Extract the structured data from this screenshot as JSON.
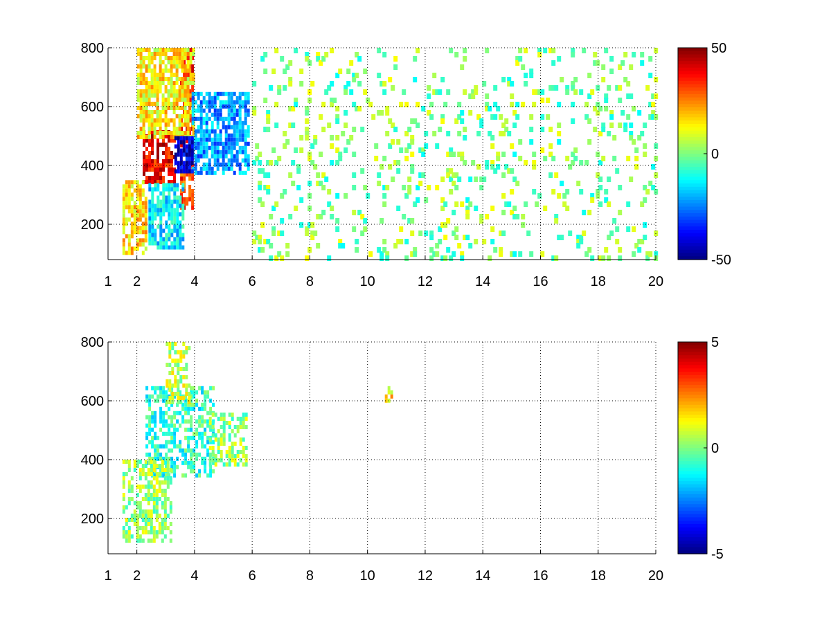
{
  "chart_data": [
    {
      "type": "heatmap",
      "title": "",
      "xlabel": "",
      "ylabel": "",
      "xlim": [
        1,
        20
      ],
      "ylim": [
        80,
        800
      ],
      "x_ticks": [
        1,
        2,
        4,
        6,
        8,
        10,
        12,
        14,
        16,
        18,
        20
      ],
      "x_tick_labels": [
        "1",
        "2",
        "4",
        "6",
        "8",
        "10",
        "12",
        "14",
        "16",
        "18",
        "20"
      ],
      "y_ticks": [
        200,
        400,
        600,
        800
      ],
      "y_tick_labels": [
        "200",
        "400",
        "600",
        "800"
      ],
      "grid": true,
      "grid_style": "dotted",
      "colormap": "jet",
      "clim": [
        -50,
        50
      ],
      "colorbar": {
        "ticks": [
          50,
          0,
          -50
        ],
        "tick_labels": [
          "50",
          "0",
          "-50"
        ]
      },
      "regions": [
        {
          "x": [
            2.2,
            3.3
          ],
          "y": [
            350,
            520
          ],
          "level": 38
        },
        {
          "x": [
            3.5,
            3.9
          ],
          "y": [
            250,
            800
          ],
          "level": 32
        },
        {
          "x": [
            2.0,
            4.0
          ],
          "y": [
            500,
            800
          ],
          "level": 14
        },
        {
          "x": [
            1.5,
            2.3
          ],
          "y": [
            100,
            350
          ],
          "level": 16
        },
        {
          "x": [
            3.9,
            5.9
          ],
          "y": [
            380,
            650
          ],
          "level": -22
        },
        {
          "x": [
            3.3,
            3.9
          ],
          "y": [
            380,
            500
          ],
          "level": -42
        },
        {
          "x": [
            2.4,
            3.6
          ],
          "y": [
            120,
            340
          ],
          "level": -14
        },
        {
          "x": [
            6,
            20
          ],
          "y": [
            80,
            800
          ],
          "level": 0,
          "sparse": true
        }
      ]
    },
    {
      "type": "heatmap",
      "title": "",
      "xlabel": "",
      "ylabel": "",
      "xlim": [
        1,
        20
      ],
      "ylim": [
        80,
        800
      ],
      "x_ticks": [
        1,
        2,
        4,
        6,
        8,
        10,
        12,
        14,
        16,
        18,
        20
      ],
      "x_tick_labels": [
        "1",
        "2",
        "4",
        "6",
        "8",
        "10",
        "12",
        "14",
        "16",
        "18",
        "20"
      ],
      "y_ticks": [
        200,
        400,
        600,
        800
      ],
      "y_tick_labels": [
        "200",
        "400",
        "600",
        "800"
      ],
      "grid": true,
      "grid_style": "dotted",
      "colormap": "jet",
      "clim": [
        -5,
        5
      ],
      "colorbar": {
        "ticks": [
          5,
          0,
          -5
        ],
        "tick_labels": [
          "5",
          "0",
          "-5"
        ]
      },
      "regions": [
        {
          "x": [
            2.3,
            4.7
          ],
          "y": [
            350,
            650
          ],
          "level": -0.8
        },
        {
          "x": [
            1.5,
            3.2
          ],
          "y": [
            120,
            400
          ],
          "level": 0.3
        },
        {
          "x": [
            3.0,
            3.8
          ],
          "y": [
            600,
            800
          ],
          "level": 0.6
        },
        {
          "x": [
            4.5,
            5.8
          ],
          "y": [
            380,
            560
          ],
          "level": 0.2
        },
        {
          "x": [
            10.6,
            10.8
          ],
          "y": [
            600,
            650
          ],
          "level": 1.5
        }
      ]
    }
  ]
}
